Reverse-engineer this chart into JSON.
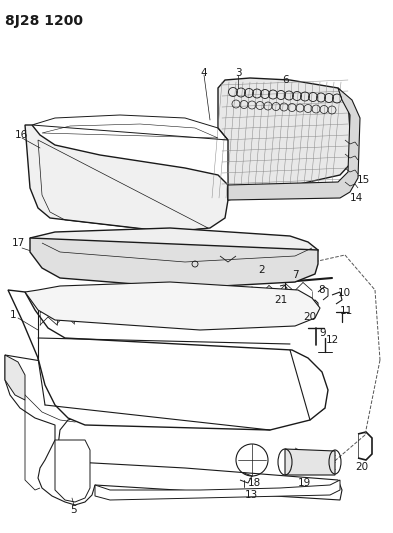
{
  "title": "8J28 1200",
  "bg_color": "#ffffff",
  "line_color": "#1a1a1a",
  "title_fontsize": 10,
  "label_fontsize": 7.5,
  "fig_width": 3.93,
  "fig_height": 5.33,
  "dpi": 100
}
